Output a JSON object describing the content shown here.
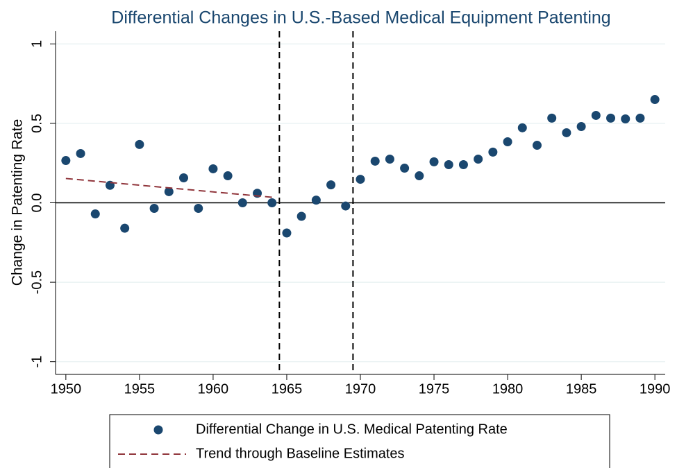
{
  "chart_data": {
    "type": "scatter",
    "title": "Differential Changes in U.S.-Based Medical Equipment Patenting",
    "y_label": "Change in Patenting Rate",
    "xlim": [
      1949.3,
      1990.7
    ],
    "ylim": [
      -1.08,
      1.08
    ],
    "xticks": [
      1950,
      1955,
      1960,
      1965,
      1970,
      1975,
      1980,
      1985,
      1990
    ],
    "yticks": [
      -1,
      -0.5,
      {
        "value": 0,
        "label": "0.0"
      },
      0.5,
      1
    ],
    "grid": true,
    "vlines": [
      1964.5,
      1969.5
    ],
    "hlines": [
      0
    ],
    "legend": "bottom",
    "series": [
      {
        "name": "Differential Change in U.S. Medical Patenting Rate",
        "kind": "scatter",
        "color": "#1a476f",
        "x": [
          1950,
          1951,
          1952,
          1953,
          1954,
          1955,
          1956,
          1957,
          1958,
          1959,
          1960,
          1961,
          1962,
          1963,
          1964,
          1965,
          1966,
          1967,
          1968,
          1969,
          1970,
          1971,
          1972,
          1973,
          1974,
          1975,
          1976,
          1977,
          1978,
          1979,
          1980,
          1981,
          1982,
          1983,
          1984,
          1985,
          1986,
          1987,
          1988,
          1989,
          1990
        ],
        "values": [
          0.266,
          0.31,
          -0.07,
          0.11,
          -0.16,
          0.367,
          -0.035,
          0.07,
          0.157,
          -0.035,
          0.214,
          0.17,
          0.0,
          0.06,
          0.0,
          -0.19,
          -0.085,
          0.017,
          0.113,
          -0.02,
          0.148,
          0.262,
          0.275,
          0.218,
          0.17,
          0.258,
          0.24,
          0.24,
          0.275,
          0.319,
          0.384,
          0.472,
          0.362,
          0.533,
          0.441,
          0.48,
          0.55,
          0.533,
          0.528,
          0.533,
          0.65
        ]
      },
      {
        "name": "Trend through Baseline Estimates",
        "kind": "line",
        "color": "#90353b",
        "x": [
          1950,
          1964
        ],
        "values": [
          0.153,
          0.035
        ]
      }
    ]
  }
}
